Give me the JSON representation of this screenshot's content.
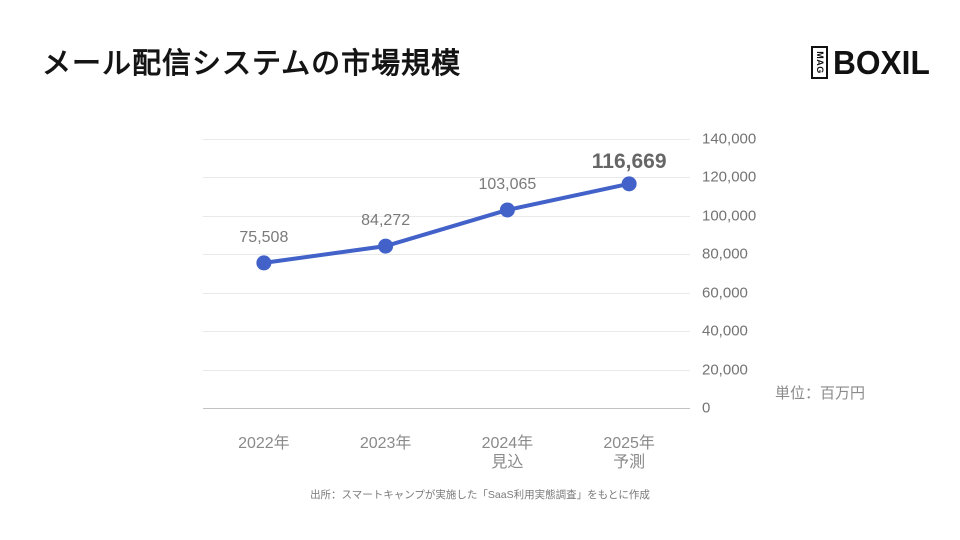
{
  "page": {
    "title": "メール配信システムの市場規模"
  },
  "logo": {
    "mag": "MAG",
    "brand": "BOXIL"
  },
  "unit_label": "単位：百万円",
  "source_note": "出所：スマートキャンプが実施した「SaaS利用実態調査」をもとに作成",
  "chart_data": {
    "type": "line",
    "title": "メール配信システムの市場規模",
    "categories": [
      [
        "2022年"
      ],
      [
        "2023年"
      ],
      [
        "2024年",
        "見込"
      ],
      [
        "2025年",
        "予測"
      ]
    ],
    "values": [
      75508,
      84272,
      103065,
      116669
    ],
    "value_labels": [
      "75,508",
      "84,272",
      "103,065",
      "116,669"
    ],
    "emphasized_index": 3,
    "ylabel": "単位：百万円",
    "ylim": [
      0,
      140000
    ],
    "ytick_step": 20000,
    "ytick_labels": [
      "0",
      "20,000",
      "40,000",
      "60,000",
      "80,000",
      "100,000",
      "120,000",
      "140,000"
    ],
    "grid": true,
    "axis_side": "right",
    "legend": "none",
    "line_color": "#4262c9",
    "marker_color": "#4262c9",
    "grid_color": "#e9e9e9",
    "baseline_color": "#c2c2c2"
  }
}
